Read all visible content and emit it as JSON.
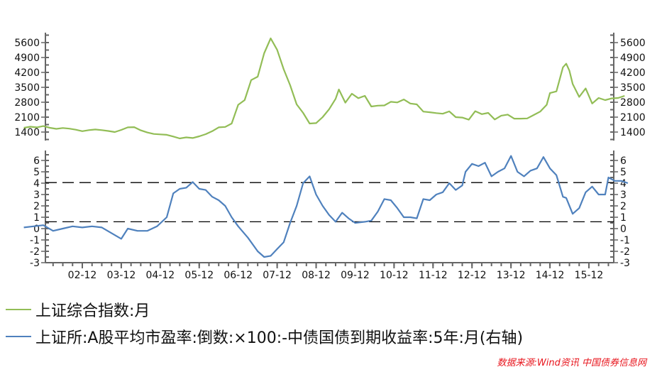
{
  "chart_data": [
    {
      "type": "line",
      "title": "",
      "series": [
        {
          "name": "上证综合指数:月",
          "color": "#92bd56"
        }
      ],
      "x_tick_labels": [
        "02-12",
        "03-12",
        "04-12",
        "05-12",
        "06-12",
        "07-12",
        "08-12",
        "09-12",
        "10-12",
        "11-12",
        "12-12",
        "13-12",
        "14-12",
        "15-12"
      ],
      "y_ticks": [
        1400,
        2100,
        2800,
        3500,
        4200,
        4900,
        5600
      ],
      "ylim": [
        1000,
        5900
      ],
      "axes": "both left and right",
      "points": [
        [
          "2001-06",
          1600
        ],
        [
          "2001-08",
          1650
        ],
        [
          "2001-10",
          1620
        ],
        [
          "2001-12",
          1680
        ],
        [
          "2002-02",
          1600
        ],
        [
          "2002-04",
          1550
        ],
        [
          "2002-06",
          1590
        ],
        [
          "2002-08",
          1560
        ],
        [
          "2002-10",
          1510
        ],
        [
          "2002-12",
          1440
        ],
        [
          "2003-02",
          1490
        ],
        [
          "2003-04",
          1520
        ],
        [
          "2003-06",
          1490
        ],
        [
          "2003-08",
          1450
        ],
        [
          "2003-10",
          1400
        ],
        [
          "2003-12",
          1500
        ],
        [
          "2004-02",
          1620
        ],
        [
          "2004-04",
          1630
        ],
        [
          "2004-06",
          1480
        ],
        [
          "2004-08",
          1380
        ],
        [
          "2004-10",
          1310
        ],
        [
          "2004-12",
          1290
        ],
        [
          "2005-02",
          1270
        ],
        [
          "2005-04",
          1190
        ],
        [
          "2005-06",
          1100
        ],
        [
          "2005-08",
          1150
        ],
        [
          "2005-10",
          1120
        ],
        [
          "2005-12",
          1200
        ],
        [
          "2006-02",
          1300
        ],
        [
          "2006-04",
          1440
        ],
        [
          "2006-06",
          1620
        ],
        [
          "2006-08",
          1640
        ],
        [
          "2006-10",
          1800
        ],
        [
          "2006-12",
          2680
        ],
        [
          "2007-02",
          2900
        ],
        [
          "2007-04",
          3840
        ],
        [
          "2007-06",
          4000
        ],
        [
          "2007-08",
          5100
        ],
        [
          "2007-10",
          5800
        ],
        [
          "2007-12",
          5260
        ],
        [
          "2008-02",
          4350
        ],
        [
          "2008-04",
          3600
        ],
        [
          "2008-06",
          2700
        ],
        [
          "2008-08",
          2300
        ],
        [
          "2008-10",
          1800
        ],
        [
          "2008-12",
          1820
        ],
        [
          "2009-02",
          2100
        ],
        [
          "2009-04",
          2470
        ],
        [
          "2009-06",
          2960
        ],
        [
          "2009-07",
          3400
        ],
        [
          "2009-09",
          2780
        ],
        [
          "2009-11",
          3200
        ],
        [
          "2010-01",
          2990
        ],
        [
          "2010-03",
          3100
        ],
        [
          "2010-05",
          2600
        ],
        [
          "2010-07",
          2640
        ],
        [
          "2010-09",
          2650
        ],
        [
          "2010-11",
          2820
        ],
        [
          "2011-01",
          2790
        ],
        [
          "2011-03",
          2930
        ],
        [
          "2011-05",
          2740
        ],
        [
          "2011-07",
          2700
        ],
        [
          "2011-09",
          2360
        ],
        [
          "2011-11",
          2330
        ],
        [
          "2012-01",
          2290
        ],
        [
          "2012-03",
          2260
        ],
        [
          "2012-05",
          2370
        ],
        [
          "2012-07",
          2100
        ],
        [
          "2012-09",
          2080
        ],
        [
          "2012-11",
          1980
        ],
        [
          "2013-01",
          2380
        ],
        [
          "2013-03",
          2240
        ],
        [
          "2013-05",
          2300
        ],
        [
          "2013-07",
          1990
        ],
        [
          "2013-09",
          2170
        ],
        [
          "2013-11",
          2220
        ],
        [
          "2014-01",
          2030
        ],
        [
          "2014-03",
          2030
        ],
        [
          "2014-05",
          2040
        ],
        [
          "2014-07",
          2200
        ],
        [
          "2014-09",
          2360
        ],
        [
          "2014-11",
          2680
        ],
        [
          "2014-12",
          3230
        ],
        [
          "2015-02",
          3310
        ],
        [
          "2015-04",
          4440
        ],
        [
          "2015-05",
          4610
        ],
        [
          "2015-06",
          4280
        ],
        [
          "2015-07",
          3660
        ],
        [
          "2015-09",
          3050
        ],
        [
          "2015-11",
          3450
        ],
        [
          "2016-01",
          2740
        ],
        [
          "2016-03",
          3000
        ],
        [
          "2016-05",
          2900
        ],
        [
          "2016-07",
          2980
        ],
        [
          "2016-09",
          3000
        ],
        [
          "2016-11",
          3100
        ]
      ]
    },
    {
      "type": "line",
      "title": "",
      "series": [
        {
          "name": "上证所:A股平均市盈率:倒数:×100:-中债国债到期收益率:5年:月(右轴)",
          "color": "#4f81bd"
        }
      ],
      "y_ticks": [
        -3,
        -2,
        -1,
        0,
        1,
        2,
        3,
        4,
        5,
        6
      ],
      "ylim": [
        -3,
        6.8
      ],
      "reference_lines": [
        {
          "y": 4.05,
          "style": "dashed"
        },
        {
          "y": 0.6,
          "style": "dashed"
        }
      ],
      "points": [
        [
          "2001-06",
          0.1
        ],
        [
          "2001-09",
          0.2
        ],
        [
          "2001-12",
          0.3
        ],
        [
          "2002-03",
          -0.2
        ],
        [
          "2002-06",
          0.0
        ],
        [
          "2002-09",
          0.2
        ],
        [
          "2002-12",
          0.1
        ],
        [
          "2003-03",
          0.2
        ],
        [
          "2003-06",
          0.1
        ],
        [
          "2003-09",
          -0.4
        ],
        [
          "2003-12",
          -0.9
        ],
        [
          "2004-02",
          0.0
        ],
        [
          "2004-05",
          -0.2
        ],
        [
          "2004-08",
          -0.2
        ],
        [
          "2004-11",
          0.2
        ],
        [
          "2005-02",
          1.0
        ],
        [
          "2005-04",
          3.1
        ],
        [
          "2005-06",
          3.5
        ],
        [
          "2005-08",
          3.6
        ],
        [
          "2005-10",
          4.1
        ],
        [
          "2005-12",
          3.5
        ],
        [
          "2006-02",
          3.4
        ],
        [
          "2006-04",
          2.8
        ],
        [
          "2006-06",
          2.5
        ],
        [
          "2006-08",
          2.0
        ],
        [
          "2006-10",
          1.0
        ],
        [
          "2006-12",
          0.2
        ],
        [
          "2007-03",
          -0.8
        ],
        [
          "2007-06",
          -2.0
        ],
        [
          "2007-08",
          -2.5
        ],
        [
          "2007-10",
          -2.4
        ],
        [
          "2007-12",
          -1.8
        ],
        [
          "2008-02",
          -1.2
        ],
        [
          "2008-04",
          0.5
        ],
        [
          "2008-06",
          2.0
        ],
        [
          "2008-08",
          4.0
        ],
        [
          "2008-10",
          4.6
        ],
        [
          "2008-12",
          3.0
        ],
        [
          "2009-02",
          2.0
        ],
        [
          "2009-04",
          1.2
        ],
        [
          "2009-06",
          0.6
        ],
        [
          "2009-08",
          1.4
        ],
        [
          "2009-10",
          0.9
        ],
        [
          "2009-12",
          0.5
        ],
        [
          "2010-03",
          0.6
        ],
        [
          "2010-05",
          0.7
        ],
        [
          "2010-07",
          1.5
        ],
        [
          "2010-09",
          2.6
        ],
        [
          "2010-11",
          2.5
        ],
        [
          "2011-01",
          1.8
        ],
        [
          "2011-03",
          1.0
        ],
        [
          "2011-05",
          1.0
        ],
        [
          "2011-07",
          0.9
        ],
        [
          "2011-09",
          2.6
        ],
        [
          "2011-11",
          2.5
        ],
        [
          "2012-01",
          3.0
        ],
        [
          "2012-03",
          3.2
        ],
        [
          "2012-05",
          4.0
        ],
        [
          "2012-07",
          3.4
        ],
        [
          "2012-09",
          3.8
        ],
        [
          "2012-10",
          5.0
        ],
        [
          "2012-12",
          5.7
        ],
        [
          "2013-02",
          5.5
        ],
        [
          "2013-04",
          5.8
        ],
        [
          "2013-06",
          4.6
        ],
        [
          "2013-08",
          5.0
        ],
        [
          "2013-10",
          5.3
        ],
        [
          "2013-12",
          6.4
        ],
        [
          "2014-02",
          5.0
        ],
        [
          "2014-04",
          4.6
        ],
        [
          "2014-06",
          5.1
        ],
        [
          "2014-08",
          5.3
        ],
        [
          "2014-10",
          6.3
        ],
        [
          "2014-12",
          5.3
        ],
        [
          "2015-02",
          4.7
        ],
        [
          "2015-04",
          2.8
        ],
        [
          "2015-05",
          2.7
        ],
        [
          "2015-07",
          1.3
        ],
        [
          "2015-09",
          1.8
        ],
        [
          "2015-11",
          3.2
        ],
        [
          "2016-01",
          3.7
        ],
        [
          "2016-03",
          3.0
        ],
        [
          "2016-05",
          3.0
        ],
        [
          "2016-06",
          4.5
        ],
        [
          "2016-08",
          4.2
        ],
        [
          "2016-10",
          4.2
        ],
        [
          "2016-12",
          4.0
        ]
      ]
    }
  ],
  "axes": {
    "top_left_ticks": [
      "5600",
      "4900",
      "4200",
      "3500",
      "2800",
      "2100",
      "1400"
    ],
    "top_right_ticks": [
      "5600",
      "4900",
      "4200",
      "3500",
      "2800",
      "2100",
      "1400"
    ],
    "bottom_left_ticks": [
      "6",
      "5",
      "4",
      "3",
      "2",
      "1",
      "0",
      "-1",
      "-2",
      "-3"
    ],
    "bottom_right_ticks": [
      "6",
      "5",
      "4",
      "3",
      "2",
      "1",
      "0",
      "-1",
      "-2",
      "-3"
    ],
    "x_ticks": [
      "02-12",
      "03-12",
      "04-12",
      "05-12",
      "06-12",
      "07-12",
      "08-12",
      "09-12",
      "10-12",
      "11-12",
      "12-12",
      "13-12",
      "14-12",
      "15-12"
    ]
  },
  "legend": {
    "item1": "上证综合指数:月",
    "item2": "上证所:A股平均市盈率:倒数:×100:-中债国债到期收益率:5年:月(右轴)",
    "color1": "#92bd56",
    "color2": "#4f81bd"
  },
  "source": "数据来源:Wind资讯 中国债券信息网"
}
